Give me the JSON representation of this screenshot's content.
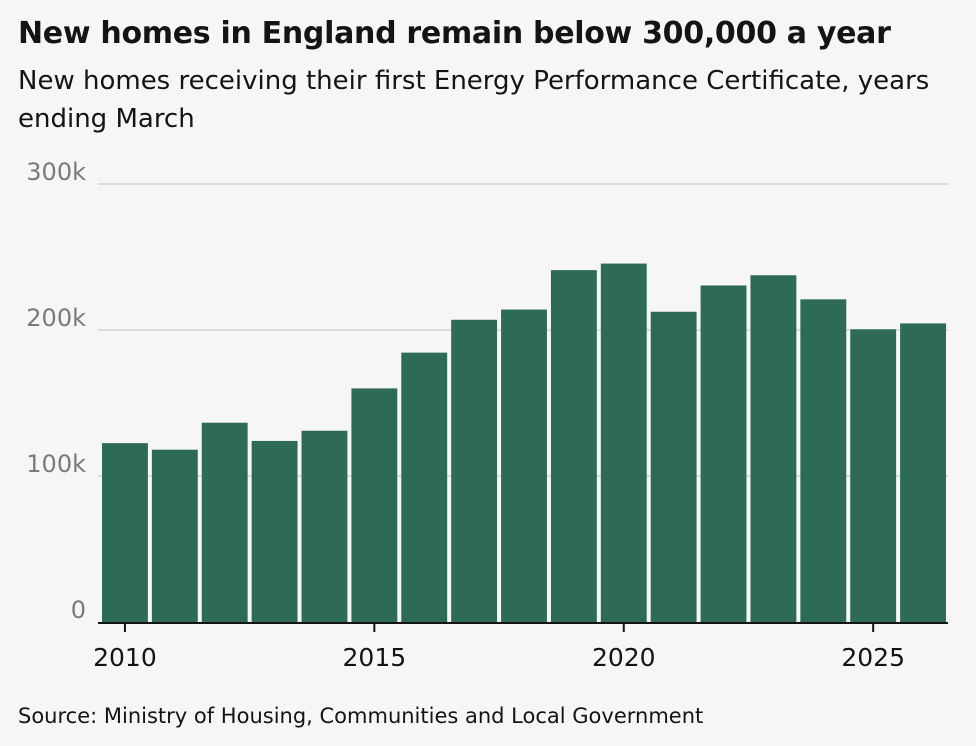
{
  "header": {
    "title": "New homes in England remain below 300,000 a year",
    "subtitle": "New homes receiving their first Energy Performance Certificate, years ending March"
  },
  "footer": {
    "source": "Source: Ministry of Housing, Communities and Local Government"
  },
  "colors": {
    "bar": "#2e6b54",
    "gridline": "#cccccc",
    "axis": "#141414",
    "background": "#f6f6f6"
  },
  "chart_data": {
    "type": "bar",
    "title": "New homes in England remain below 300,000 a year",
    "subtitle": "New homes receiving their first Energy Performance Certificate, years ending March",
    "xlabel": "",
    "ylabel": "",
    "categories": [
      2010,
      2011,
      2012,
      2013,
      2014,
      2015,
      2016,
      2017,
      2018,
      2019,
      2020,
      2021,
      2022,
      2023,
      2024,
      2025,
      2026
    ],
    "values": [
      122500,
      118000,
      136500,
      124000,
      131000,
      160000,
      184500,
      207000,
      214000,
      241000,
      245500,
      212500,
      230500,
      237500,
      221000,
      200500,
      204500
    ],
    "ylim": [
      0,
      300000
    ],
    "y_ticks": [
      0,
      100000,
      200000,
      300000
    ],
    "y_tick_labels": [
      "0",
      "100k",
      "200k",
      "300k"
    ],
    "x_ticks": [
      2010,
      2015,
      2020,
      2025
    ],
    "x_tick_labels": [
      "2010",
      "2015",
      "2020",
      "2025"
    ],
    "grid": true,
    "legend": "none"
  }
}
